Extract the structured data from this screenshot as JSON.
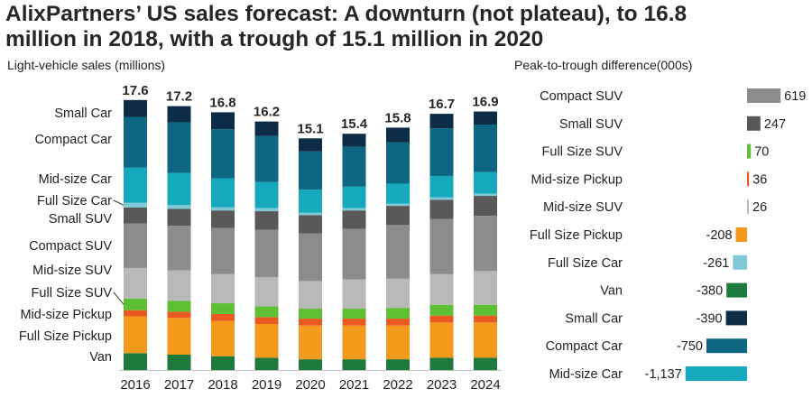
{
  "title_line1": "AlixPartners’ US sales forecast:  A downturn (not plateau), to 16.8",
  "title_line2": "million in 2018, with a trough of 15.1 million in 2020",
  "chart_data": [
    {
      "type": "bar",
      "stacked": true,
      "subtitle": "Light-vehicle sales (millions)",
      "categories": [
        "2016",
        "2017",
        "2018",
        "2019",
        "2020",
        "2021",
        "2022",
        "2023",
        "2024"
      ],
      "totals": [
        17.6,
        17.2,
        16.8,
        16.2,
        15.1,
        15.4,
        15.8,
        16.7,
        16.9
      ],
      "total_labels": [
        "17.6",
        "17.2",
        "16.8",
        "16.2",
        "15.1",
        "15.4",
        "15.8",
        "16.7",
        "16.9"
      ],
      "ylim": [
        0,
        18
      ],
      "series": [
        {
          "name": "Van",
          "color": "#1e7a3c",
          "values": [
            1.1,
            1.0,
            0.9,
            0.8,
            0.7,
            0.7,
            0.7,
            0.8,
            0.8
          ]
        },
        {
          "name": "Full Size Pickup",
          "color": "#f39a1c",
          "values": [
            2.4,
            2.4,
            2.3,
            2.2,
            2.2,
            2.2,
            2.2,
            2.3,
            2.3
          ]
        },
        {
          "name": "Mid-size Pickup",
          "color": "#ea5a20",
          "values": [
            0.4,
            0.4,
            0.45,
            0.45,
            0.45,
            0.45,
            0.45,
            0.45,
            0.45
          ]
        },
        {
          "name": "Full Size SUV",
          "color": "#5cc032",
          "values": [
            0.75,
            0.7,
            0.7,
            0.7,
            0.65,
            0.65,
            0.7,
            0.7,
            0.7
          ]
        },
        {
          "name": "Mid-size SUV",
          "color": "#b8b8b8",
          "values": [
            2.0,
            2.0,
            1.9,
            1.9,
            1.8,
            1.9,
            1.9,
            2.0,
            2.2
          ]
        },
        {
          "name": "Compact SUV",
          "color": "#8c8c8c",
          "values": [
            2.9,
            2.9,
            3.0,
            3.1,
            3.1,
            3.3,
            3.5,
            3.6,
            3.6
          ]
        },
        {
          "name": "Small SUV",
          "color": "#585858",
          "values": [
            1.05,
            1.1,
            1.15,
            1.2,
            1.2,
            1.2,
            1.25,
            1.25,
            1.3
          ]
        },
        {
          "name": "Full Size Car",
          "color": "#7fc8d6",
          "values": [
            0.3,
            0.25,
            0.2,
            0.2,
            0.15,
            0.15,
            0.15,
            0.15,
            0.15
          ]
        },
        {
          "name": "Mid-size Car",
          "color": "#16a9be",
          "values": [
            2.3,
            2.1,
            1.9,
            1.7,
            1.5,
            1.4,
            1.3,
            1.4,
            1.4
          ]
        },
        {
          "name": "Compact Car",
          "color": "#0d6783",
          "values": [
            3.3,
            3.3,
            3.2,
            3.0,
            2.5,
            2.6,
            2.7,
            3.1,
            3.1
          ]
        },
        {
          "name": "Small Car",
          "color": "#0c2c47",
          "values": [
            1.1,
            1.05,
            1.1,
            0.95,
            0.85,
            0.85,
            0.95,
            0.95,
            0.85
          ]
        }
      ],
      "legend_labels": [
        "Small Car",
        "Compact Car",
        "Mid-size Car",
        "Full Size Car",
        "Small SUV",
        "Compact SUV",
        "Mid-size SUV",
        "Full Size SUV",
        "Mid-size Pickup",
        "Full Size Pickup",
        "Van"
      ]
    },
    {
      "type": "bar",
      "orientation": "horizontal",
      "subtitle": "Peak-to-trough difference(000s)",
      "categories": [
        "Compact SUV",
        "Small SUV",
        "Full Size SUV",
        "Mid-size Pickup",
        "Mid-size SUV",
        "Full Size Pickup",
        "Full Size Car",
        "Van",
        "Small Car",
        "Compact Car",
        "Mid-size Car"
      ],
      "values": [
        619,
        247,
        70,
        36,
        26,
        -208,
        -261,
        -380,
        -390,
        -750,
        -1137
      ],
      "value_labels": [
        "619",
        "247",
        "70",
        "36",
        "26",
        "-208",
        "-261",
        "-380",
        "-390",
        "-750",
        "-1,137"
      ],
      "colors": [
        "#8c8c8c",
        "#585858",
        "#5cc032",
        "#ea5a20",
        "#b8b8b8",
        "#f39a1c",
        "#7fc8d6",
        "#1e7a3c",
        "#0c2c47",
        "#0d6783",
        "#16a9be"
      ]
    }
  ]
}
